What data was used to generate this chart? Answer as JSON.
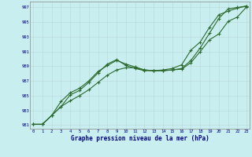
{
  "background_color": "#c8eef0",
  "line_color": "#2d6a2d",
  "xlabel": "Graphe pression niveau de la mer (hPa)",
  "xlim": [
    -0.3,
    23.3
  ],
  "ylim": [
    980.5,
    997.8
  ],
  "yticks": [
    981,
    983,
    985,
    987,
    989,
    991,
    993,
    995,
    997
  ],
  "xticks": [
    0,
    1,
    2,
    3,
    4,
    5,
    6,
    7,
    8,
    9,
    10,
    11,
    12,
    13,
    14,
    15,
    16,
    17,
    18,
    19,
    20,
    21,
    22,
    23
  ],
  "series": [
    {
      "x": [
        0,
        1,
        2,
        3,
        4,
        5,
        6,
        7,
        8,
        9,
        10,
        11,
        12,
        13,
        14,
        15,
        16,
        17,
        18,
        19,
        20,
        21,
        22,
        23
      ],
      "y": [
        981.1,
        981.1,
        982.3,
        983.5,
        985.1,
        985.7,
        986.8,
        988.1,
        989.3,
        989.9,
        989.1,
        988.7,
        988.4,
        988.4,
        988.4,
        988.5,
        988.6,
        989.5,
        991.0,
        992.6,
        993.4,
        995.1,
        995.7,
        997.1
      ]
    },
    {
      "x": [
        0,
        1,
        2,
        3,
        4,
        5,
        6,
        7,
        8,
        9,
        10,
        11,
        12,
        13,
        14,
        15,
        16,
        17,
        18,
        19,
        20,
        21,
        22,
        23
      ],
      "y": [
        981.1,
        981.1,
        982.3,
        983.5,
        984.3,
        985.0,
        985.8,
        986.8,
        987.8,
        988.5,
        988.8,
        988.8,
        988.5,
        988.4,
        988.4,
        988.5,
        988.7,
        989.8,
        991.5,
        993.5,
        995.5,
        996.8,
        997.0,
        997.2
      ]
    },
    {
      "x": [
        0,
        1,
        2,
        3,
        4,
        5,
        6,
        7,
        8,
        9,
        10,
        11,
        12,
        13,
        14,
        15,
        16,
        17,
        18,
        19,
        20,
        21,
        22,
        23
      ],
      "y": [
        981.1,
        981.1,
        982.3,
        984.2,
        985.4,
        986.0,
        987.0,
        988.3,
        989.1,
        989.8,
        989.3,
        988.9,
        988.5,
        988.4,
        988.5,
        988.7,
        989.2,
        991.2,
        992.3,
        994.3,
        996.0,
        996.5,
        996.9,
        997.2
      ]
    }
  ]
}
